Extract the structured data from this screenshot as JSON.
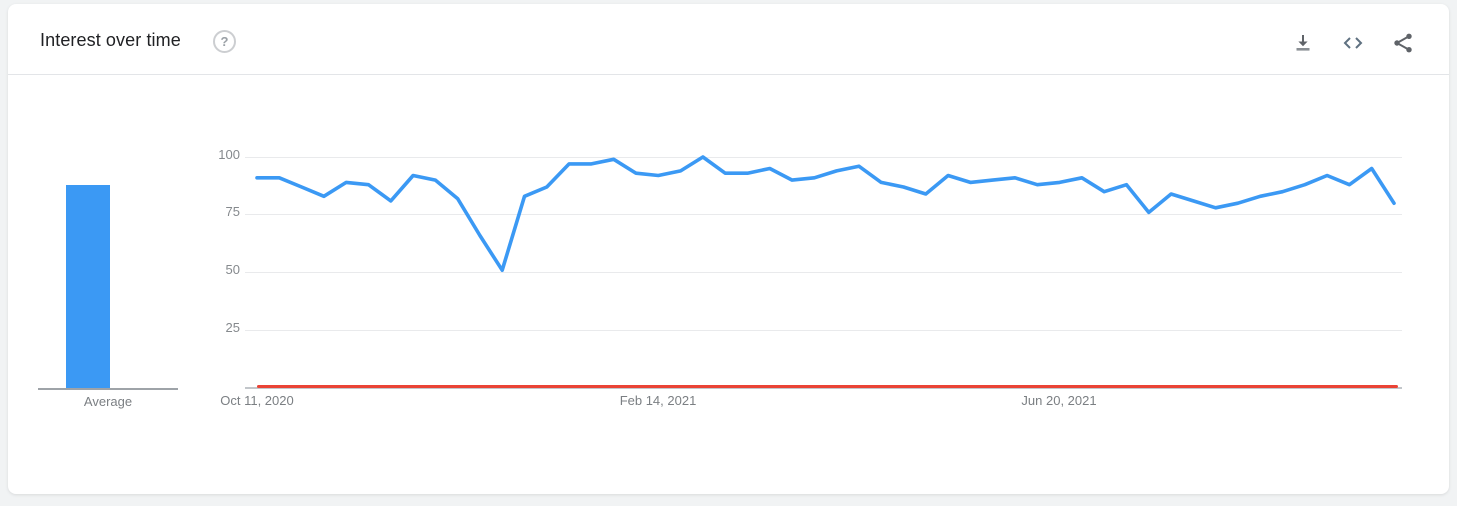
{
  "page": {
    "background": "#f1f3f4",
    "card_background": "#ffffff"
  },
  "header": {
    "title": "Interest over time",
    "help_text": "?",
    "actions": [
      {
        "label": "download",
        "icon": "download-icon"
      },
      {
        "label": "embed",
        "icon": "code-icon"
      },
      {
        "label": "share",
        "icon": "share-icon"
      }
    ]
  },
  "average_panel": {
    "label": "Average",
    "value": 88,
    "bar_color": "#3b99f4"
  },
  "chart_data": {
    "type": "line",
    "title": "Interest over time",
    "x_tick_labels": [
      "Oct 11, 2020",
      "Feb 14, 2021",
      "Jun 20, 2021"
    ],
    "y_tick_labels": [
      "100",
      "75",
      "50",
      "25"
    ],
    "ylim": [
      0,
      100
    ],
    "grid": "horizontal",
    "legend": "none",
    "point_interval": "weekly",
    "series": [
      {
        "name": "primary-term",
        "color": "#3b99f4",
        "values": [
          91,
          91,
          87,
          83,
          89,
          88,
          81,
          92,
          90,
          82,
          66,
          51,
          83,
          87,
          97,
          97,
          99,
          93,
          92,
          94,
          100,
          93,
          93,
          95,
          90,
          91,
          94,
          96,
          89,
          87,
          84,
          92,
          89,
          90,
          91,
          88,
          89,
          91,
          85,
          88,
          76,
          84,
          81,
          78,
          80,
          83,
          85,
          88,
          92,
          88,
          95,
          80
        ]
      },
      {
        "name": "secondary-term",
        "color": "#ea4335",
        "constant_value": 1
      }
    ]
  }
}
